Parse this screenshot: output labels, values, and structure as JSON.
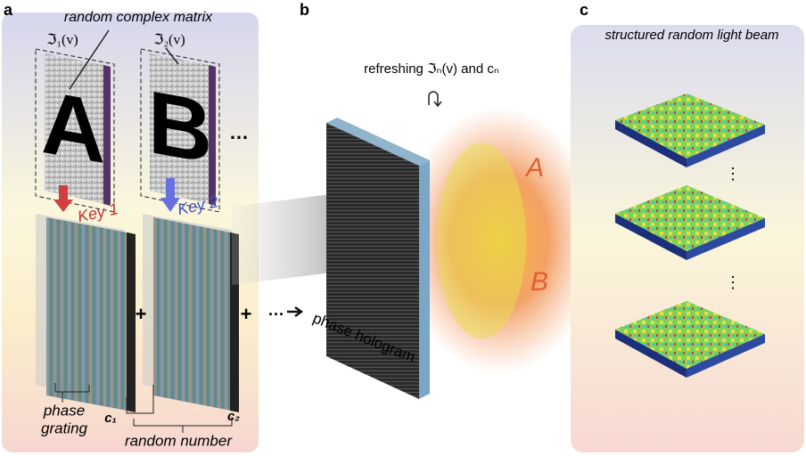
{
  "panels": [
    {
      "label": "a",
      "title": "random complex matrix",
      "matrices": [
        {
          "operator": "ℑ₁(v)",
          "letter": "A",
          "key": "Key 1",
          "coefficient": "c₁"
        },
        {
          "operator": "ℑ₂(v)",
          "letter": "B",
          "key": "Key 2",
          "coefficient": "c₂"
        }
      ],
      "ellipsis": "…",
      "plus": "+",
      "continuation": "···",
      "grating_label": [
        "phase",
        "grating"
      ],
      "random_label": "random number"
    },
    {
      "label": "b",
      "caption": "refreshing ℑₙ(v) and cₙ",
      "hologram_label": "phase hologram"
    },
    {
      "label": "c",
      "title": "structured random light beam",
      "vdots": "⋮"
    }
  ]
}
